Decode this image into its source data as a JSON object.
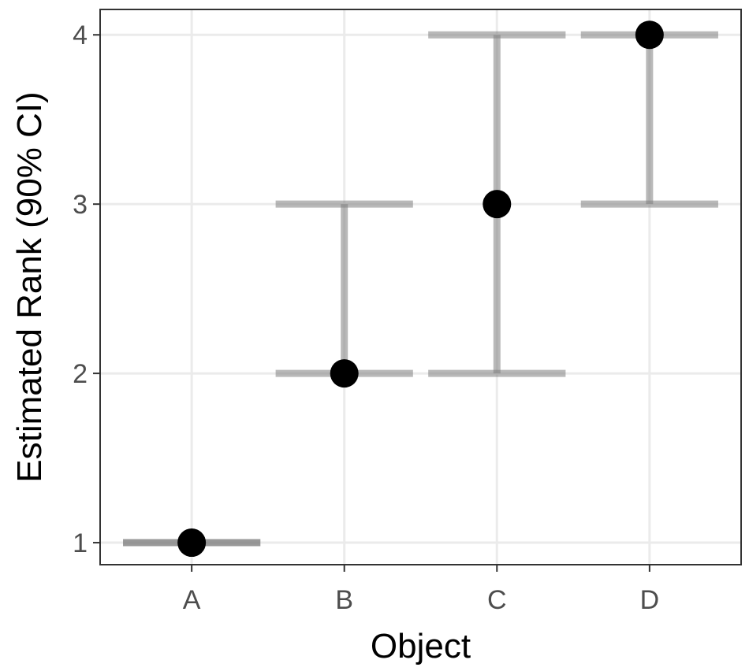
{
  "chart_data": {
    "type": "scatter",
    "title": "",
    "xlabel": "Object",
    "ylabel": "Estimated Rank (90% CI)",
    "categories": [
      "A",
      "B",
      "C",
      "D"
    ],
    "points": [
      {
        "x": "A",
        "y": 1,
        "ci_low": 1,
        "ci_high": 1
      },
      {
        "x": "B",
        "y": 2,
        "ci_low": 2,
        "ci_high": 3
      },
      {
        "x": "C",
        "y": 3,
        "ci_low": 2,
        "ci_high": 4
      },
      {
        "x": "D",
        "y": 4,
        "ci_low": 3,
        "ci_high": 4
      }
    ],
    "ylim": [
      0.87,
      4.15
    ],
    "yticks": [
      1,
      2,
      3,
      4
    ],
    "grid": true,
    "colors": {
      "point": "#000000",
      "error_bar": "#808080",
      "grid": "#ebebeb",
      "panel_border": "#333333"
    }
  }
}
